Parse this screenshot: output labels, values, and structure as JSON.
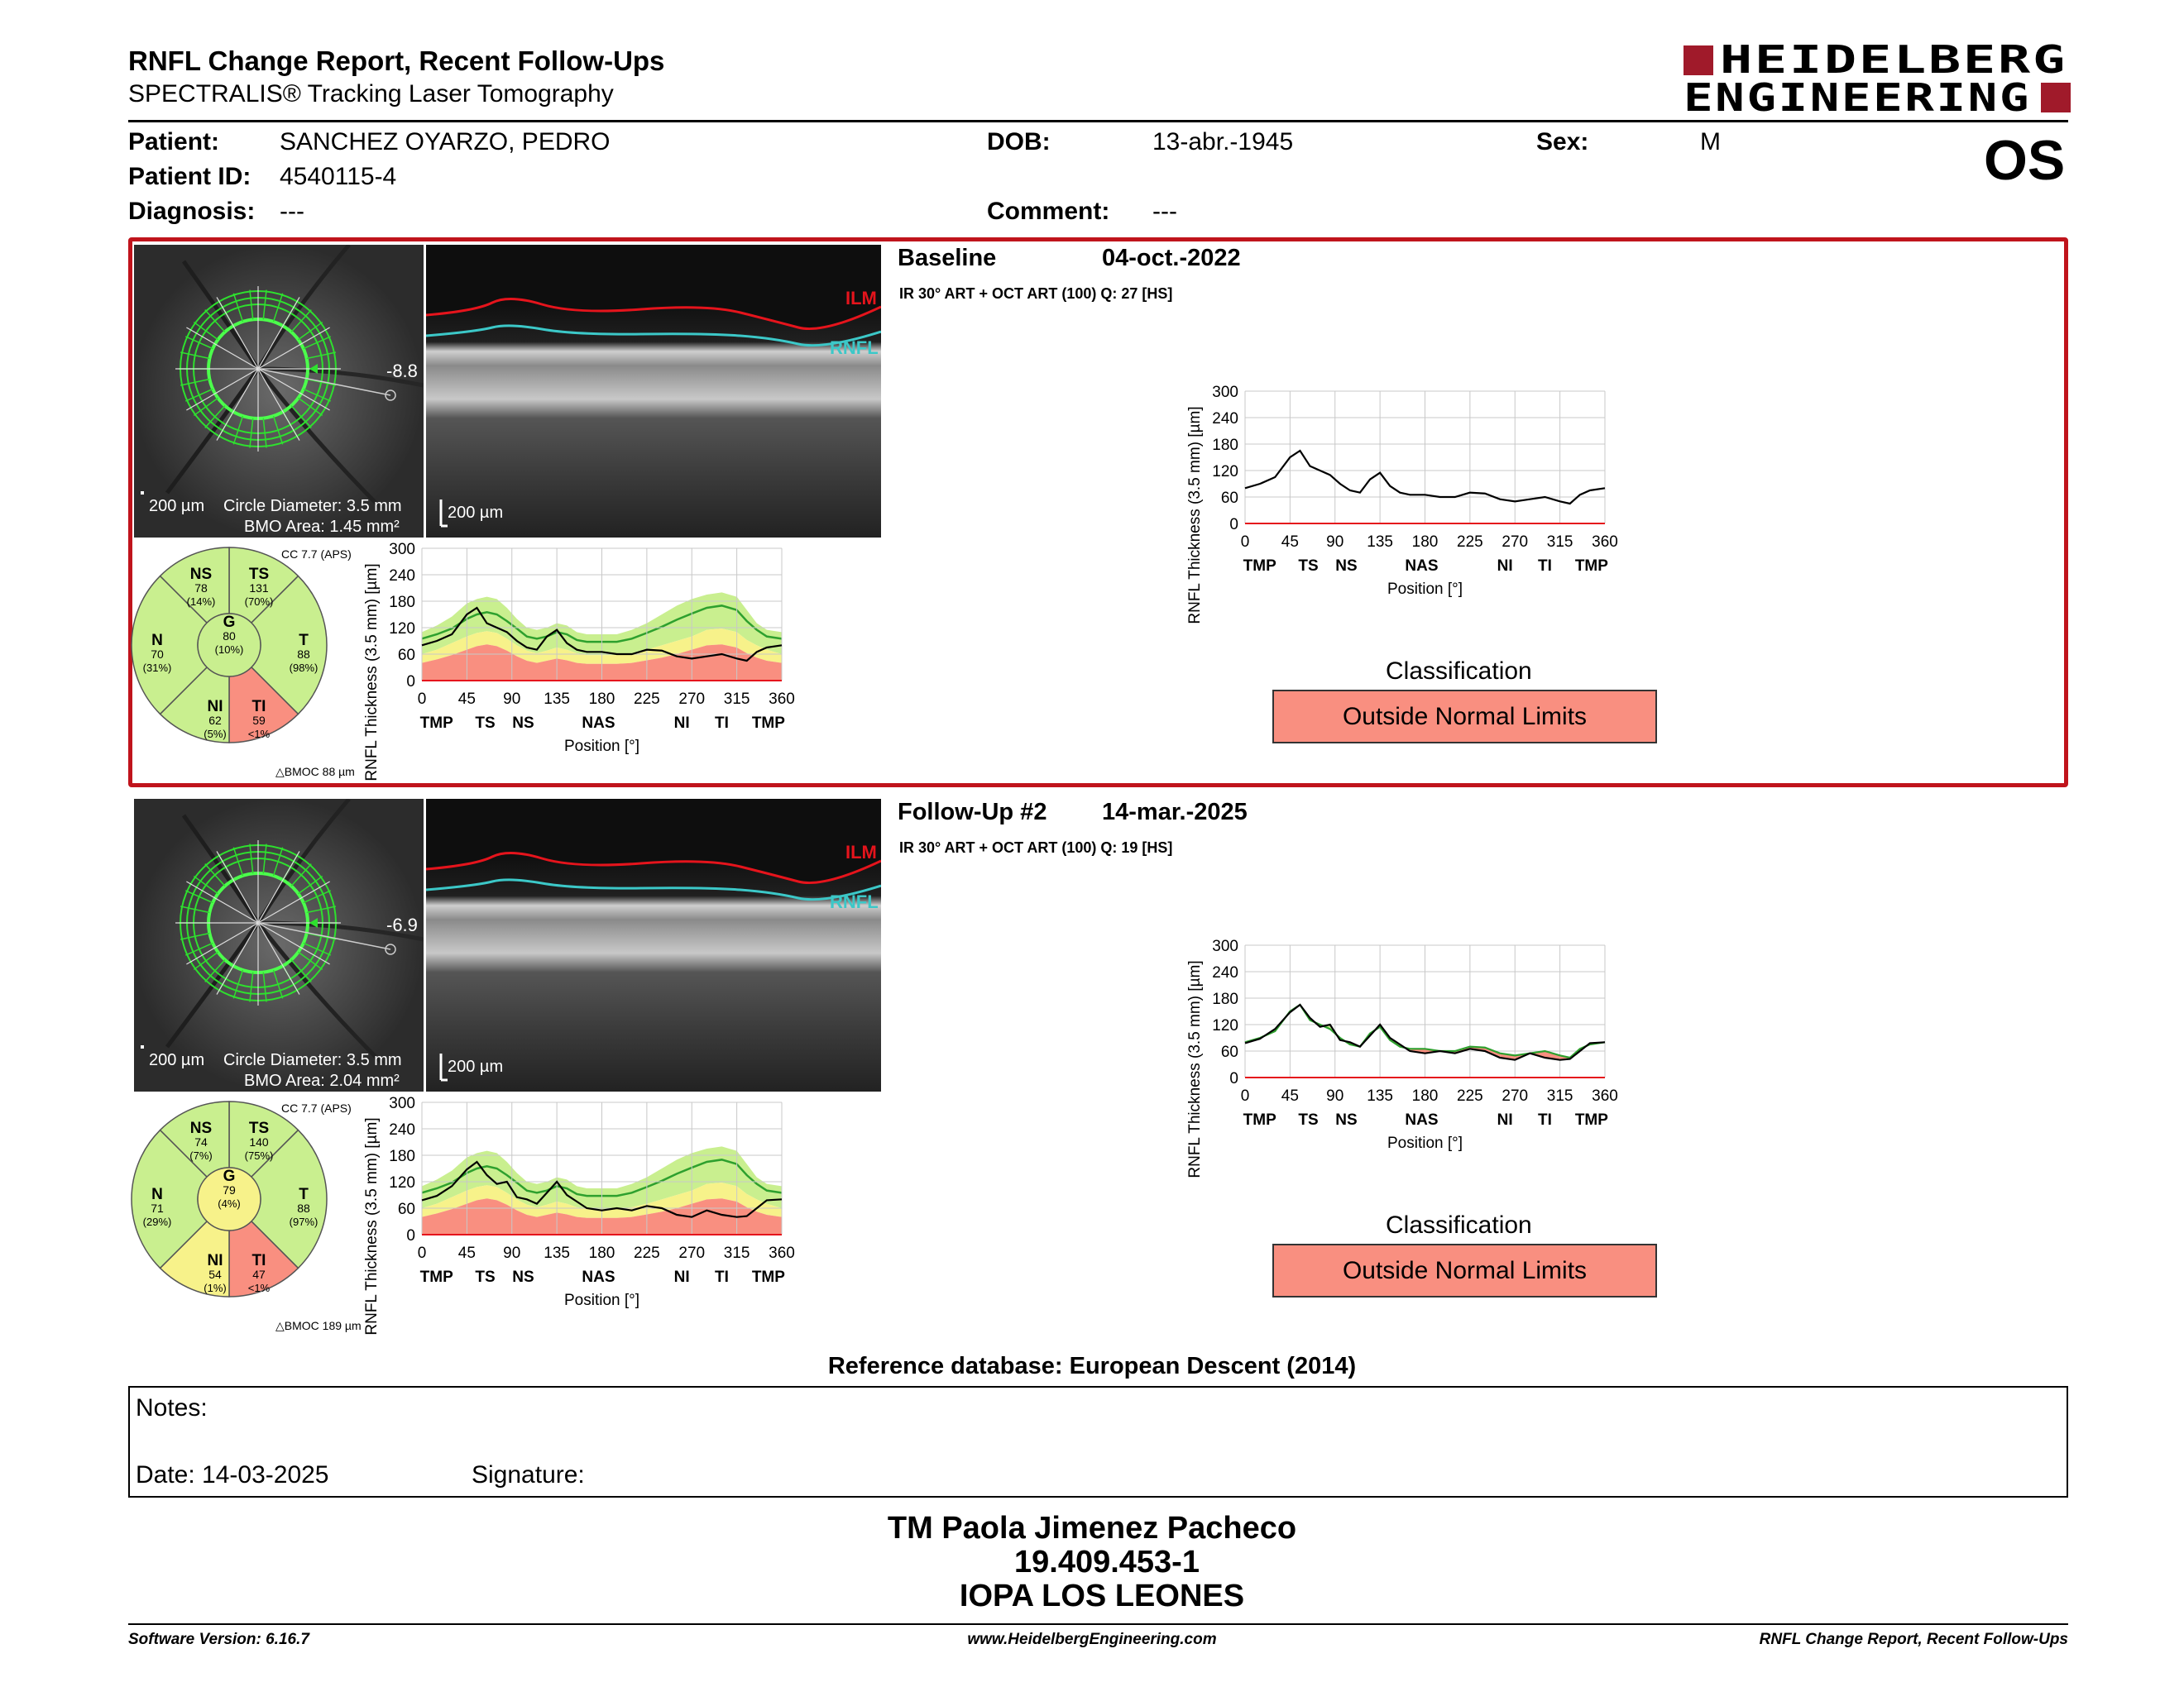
{
  "report": {
    "title": "RNFL Change Report, Recent Follow-Ups",
    "subtitle": "SPECTRALIS® Tracking Laser Tomography",
    "logo_line1": "HEIDELBERG",
    "logo_line2": "ENGINEERING",
    "eye": "OS"
  },
  "patient": {
    "patient_label": "Patient:",
    "name": "SANCHEZ OYARZO, PEDRO",
    "id_label": "Patient ID:",
    "id": "4540115-4",
    "diagnosis_label": "Diagnosis:",
    "diagnosis": "---",
    "dob_label": "DOB:",
    "dob": "13-abr.-1945",
    "comment_label": "Comment:",
    "comment": "---",
    "sex_label": "Sex:",
    "sex": "M"
  },
  "colors": {
    "outside_limits": "#f98f80",
    "borderline": "#f7f28a",
    "normal": "#c9ef8f",
    "ilm": "#e5141c",
    "rnfl": "#3cc8c8",
    "frame": "#c0141c"
  },
  "exams": [
    {
      "label": "Baseline",
      "date": "04-oct.-2022",
      "acq": "IR 30° ART + OCT ART (100) Q: 27 [HS]",
      "fundus_offset": "-8.8",
      "scale_label": "200 µm",
      "circle_diameter": "Circle Diameter: 3.5 mm",
      "bmo_area": "BMO Area: 1.45 mm²",
      "bscan_scale": "200 µm",
      "ilm_label": "ILM",
      "rnfl_label": "RNFL",
      "cc_label": "CC 7.7 (APS)",
      "bmoc": "△BMOC 88 µm",
      "sectors": {
        "NS": {
          "name": "NS",
          "value": "78",
          "pct": "(14%)",
          "color": "#c9ef8f"
        },
        "TS": {
          "name": "TS",
          "value": "131",
          "pct": "(70%)",
          "color": "#c9ef8f"
        },
        "N": {
          "name": "N",
          "value": "70",
          "pct": "(31%)",
          "color": "#c9ef8f"
        },
        "G": {
          "name": "G",
          "value": "80",
          "pct": "(10%)",
          "color": "#c9ef8f"
        },
        "T": {
          "name": "T",
          "value": "88",
          "pct": "(98%)",
          "color": "#c9ef8f"
        },
        "NI": {
          "name": "NI",
          "value": "62",
          "pct": "(5%)",
          "color": "#c9ef8f"
        },
        "TI": {
          "name": "TI",
          "value": "59",
          "pct": "<1%",
          "color": "#f98f80"
        }
      },
      "classification_label": "Classification",
      "classification": "Outside Normal Limits"
    },
    {
      "label": "Follow-Up #2",
      "date": "14-mar.-2025",
      "acq": "IR 30° ART + OCT ART (100) Q: 19 [HS]",
      "fundus_offset": "-6.9",
      "scale_label": "200 µm",
      "circle_diameter": "Circle Diameter: 3.5 mm",
      "bmo_area": "BMO Area: 2.04 mm²",
      "bscan_scale": "200 µm",
      "ilm_label": "ILM",
      "rnfl_label": "RNFL",
      "cc_label": "CC 7.7 (APS)",
      "bmoc": "△BMOC 189 µm",
      "sectors": {
        "NS": {
          "name": "NS",
          "value": "74",
          "pct": "(7%)",
          "color": "#c9ef8f"
        },
        "TS": {
          "name": "TS",
          "value": "140",
          "pct": "(75%)",
          "color": "#c9ef8f"
        },
        "N": {
          "name": "N",
          "value": "71",
          "pct": "(29%)",
          "color": "#c9ef8f"
        },
        "G": {
          "name": "G",
          "value": "79",
          "pct": "(4%)",
          "color": "#f7f28a"
        },
        "T": {
          "name": "T",
          "value": "88",
          "pct": "(97%)",
          "color": "#c9ef8f"
        },
        "NI": {
          "name": "NI",
          "value": "54",
          "pct": "(1%)",
          "color": "#f7f28a"
        },
        "TI": {
          "name": "TI",
          "value": "47",
          "pct": "<1%",
          "color": "#f98f80"
        }
      },
      "classification_label": "Classification",
      "classification": "Outside Normal Limits"
    }
  ],
  "chart_data": [
    {
      "type": "line",
      "name": "baseline-profile-vs-normative",
      "ylabel": "RNFL Thickness (3.5 mm) [µm]",
      "xlabel": "Position [°]",
      "ylim": [
        0,
        300
      ],
      "xlim": [
        0,
        360
      ],
      "x_ticks": [
        "0",
        "45",
        "90",
        "135",
        "180",
        "225",
        "270",
        "315",
        "360"
      ],
      "y_ticks": [
        "0",
        "60",
        "120",
        "180",
        "240",
        "300"
      ],
      "sector_labels": [
        "TMP",
        "TS",
        "NS",
        "NAS",
        "NI",
        "TI",
        "TMP"
      ],
      "x": [
        0,
        15,
        30,
        45,
        55,
        65,
        75,
        85,
        95,
        105,
        115,
        125,
        135,
        145,
        155,
        165,
        180,
        195,
        210,
        225,
        240,
        255,
        270,
        285,
        300,
        315,
        325,
        335,
        345,
        360
      ],
      "series": [
        {
          "name": "Baseline",
          "values": [
            80,
            90,
            105,
            150,
            165,
            130,
            120,
            110,
            90,
            75,
            70,
            100,
            115,
            85,
            70,
            65,
            65,
            60,
            60,
            70,
            68,
            55,
            50,
            55,
            60,
            50,
            45,
            65,
            75,
            80
          ]
        }
      ],
      "normal_band": {
        "lower": [
          75,
          85,
          100,
          115,
          125,
          130,
          125,
          110,
          95,
          80,
          75,
          80,
          90,
          85,
          75,
          70,
          70,
          70,
          75,
          85,
          95,
          105,
          120,
          135,
          140,
          130,
          110,
          95,
          85,
          75
        ],
        "upper": [
          110,
          125,
          145,
          175,
          185,
          190,
          185,
          165,
          140,
          120,
          115,
          120,
          130,
          125,
          110,
          105,
          105,
          105,
          115,
          130,
          150,
          170,
          185,
          195,
          200,
          190,
          160,
          130,
          115,
          110
        ]
      },
      "borderline_upper": [
        60,
        70,
        85,
        100,
        108,
        112,
        108,
        95,
        80,
        68,
        62,
        68,
        75,
        70,
        62,
        58,
        58,
        58,
        62,
        70,
        80,
        90,
        100,
        115,
        118,
        110,
        92,
        80,
        70,
        60
      ],
      "outside_upper": [
        40,
        48,
        58,
        70,
        78,
        82,
        78,
        68,
        55,
        45,
        40,
        45,
        50,
        46,
        40,
        38,
        38,
        38,
        40,
        46,
        52,
        60,
        70,
        80,
        82,
        75,
        62,
        52,
        45,
        40
      ],
      "mean": [
        95,
        105,
        118,
        140,
        150,
        155,
        150,
        135,
        118,
        100,
        95,
        100,
        110,
        105,
        92,
        88,
        88,
        88,
        95,
        108,
        122,
        138,
        152,
        165,
        170,
        160,
        135,
        115,
        100,
        95
      ]
    },
    {
      "type": "line",
      "name": "baseline-profile",
      "ylabel": "RNFL Thickness (3.5 mm) [µm]",
      "xlabel": "Position [°]",
      "ylim": [
        0,
        300
      ],
      "xlim": [
        0,
        360
      ],
      "x_ticks": [
        "0",
        "45",
        "90",
        "135",
        "180",
        "225",
        "270",
        "315",
        "360"
      ],
      "y_ticks": [
        "0",
        "60",
        "120",
        "180",
        "240",
        "300"
      ],
      "sector_labels": [
        "TMP",
        "TS",
        "NS",
        "NAS",
        "NI",
        "TI",
        "TMP"
      ],
      "x": [
        0,
        15,
        30,
        45,
        55,
        65,
        75,
        85,
        95,
        105,
        115,
        125,
        135,
        145,
        155,
        165,
        180,
        195,
        210,
        225,
        240,
        255,
        270,
        285,
        300,
        315,
        325,
        335,
        345,
        360
      ],
      "series": [
        {
          "name": "Baseline",
          "values": [
            80,
            90,
            105,
            150,
            165,
            130,
            120,
            110,
            90,
            75,
            70,
            100,
            115,
            85,
            70,
            65,
            65,
            60,
            60,
            70,
            68,
            55,
            50,
            55,
            60,
            50,
            45,
            65,
            75,
            80
          ]
        }
      ]
    },
    {
      "type": "line",
      "name": "followup-profile-vs-normative",
      "ylabel": "RNFL Thickness (3.5 mm) [µm]",
      "xlabel": "Position [°]",
      "ylim": [
        0,
        300
      ],
      "xlim": [
        0,
        360
      ],
      "x_ticks": [
        "0",
        "45",
        "90",
        "135",
        "180",
        "225",
        "270",
        "315",
        "360"
      ],
      "y_ticks": [
        "0",
        "60",
        "120",
        "180",
        "240",
        "300"
      ],
      "sector_labels": [
        "TMP",
        "TS",
        "NS",
        "NAS",
        "NI",
        "TI",
        "TMP"
      ],
      "x": [
        0,
        15,
        30,
        45,
        55,
        65,
        75,
        85,
        95,
        105,
        115,
        125,
        135,
        145,
        155,
        165,
        180,
        195,
        210,
        225,
        240,
        255,
        270,
        285,
        300,
        315,
        325,
        335,
        345,
        360
      ],
      "series": [
        {
          "name": "Follow-Up #2",
          "values": [
            78,
            88,
            110,
            148,
            165,
            135,
            115,
            120,
            85,
            80,
            70,
            95,
            120,
            90,
            75,
            60,
            55,
            60,
            55,
            65,
            60,
            45,
            40,
            55,
            45,
            40,
            42,
            60,
            78,
            80
          ]
        }
      ],
      "normal_band": {
        "lower": [
          75,
          85,
          100,
          115,
          125,
          130,
          125,
          110,
          95,
          80,
          75,
          80,
          90,
          85,
          75,
          70,
          70,
          70,
          75,
          85,
          95,
          105,
          120,
          135,
          140,
          130,
          110,
          95,
          85,
          75
        ],
        "upper": [
          110,
          125,
          145,
          175,
          185,
          190,
          185,
          165,
          140,
          120,
          115,
          120,
          130,
          125,
          110,
          105,
          105,
          105,
          115,
          130,
          150,
          170,
          185,
          195,
          200,
          190,
          160,
          130,
          115,
          110
        ]
      },
      "borderline_upper": [
        60,
        70,
        85,
        100,
        108,
        112,
        108,
        95,
        80,
        68,
        62,
        68,
        75,
        70,
        62,
        58,
        58,
        58,
        62,
        70,
        80,
        90,
        100,
        115,
        118,
        110,
        92,
        80,
        70,
        60
      ],
      "outside_upper": [
        40,
        48,
        58,
        70,
        78,
        82,
        78,
        68,
        55,
        45,
        40,
        45,
        50,
        46,
        40,
        38,
        38,
        38,
        40,
        46,
        52,
        60,
        70,
        80,
        82,
        75,
        62,
        52,
        45,
        40
      ],
      "mean": [
        95,
        105,
        118,
        140,
        150,
        155,
        150,
        135,
        118,
        100,
        95,
        100,
        110,
        105,
        92,
        88,
        88,
        88,
        95,
        108,
        122,
        138,
        152,
        165,
        170,
        160,
        135,
        115,
        100,
        95
      ]
    },
    {
      "type": "line",
      "name": "followup-change-profile",
      "ylabel": "RNFL Thickness (3.5 mm) [µm]",
      "xlabel": "Position [°]",
      "ylim": [
        0,
        300
      ],
      "xlim": [
        0,
        360
      ],
      "x_ticks": [
        "0",
        "45",
        "90",
        "135",
        "180",
        "225",
        "270",
        "315",
        "360"
      ],
      "y_ticks": [
        "0",
        "60",
        "120",
        "180",
        "240",
        "300"
      ],
      "sector_labels": [
        "TMP",
        "TS",
        "NS",
        "NAS",
        "NI",
        "TI",
        "TMP"
      ],
      "x": [
        0,
        15,
        30,
        45,
        55,
        65,
        75,
        85,
        95,
        105,
        115,
        125,
        135,
        145,
        155,
        165,
        180,
        195,
        210,
        225,
        240,
        255,
        270,
        285,
        300,
        315,
        325,
        335,
        345,
        360
      ],
      "series": [
        {
          "name": "Baseline",
          "values": [
            80,
            90,
            105,
            150,
            165,
            130,
            120,
            110,
            90,
            75,
            70,
            100,
            115,
            85,
            70,
            65,
            65,
            60,
            60,
            70,
            68,
            55,
            50,
            55,
            60,
            50,
            45,
            65,
            75,
            80
          ]
        },
        {
          "name": "Follow-Up #2",
          "values": [
            78,
            88,
            110,
            148,
            165,
            135,
            115,
            120,
            85,
            80,
            70,
            95,
            120,
            90,
            75,
            60,
            55,
            60,
            55,
            65,
            60,
            45,
            40,
            55,
            45,
            40,
            42,
            60,
            78,
            80
          ]
        }
      ]
    }
  ],
  "reference_db": "Reference database: European Descent (2014)",
  "notes": {
    "notes_label": "Notes:",
    "date_label": "Date: 14-03-2025",
    "signature_label": "Signature:"
  },
  "signatory": {
    "name": "TM Paola Jimenez Pacheco",
    "rut": "19.409.453-1",
    "institution": "IOPA LOS LEONES"
  },
  "footer": {
    "version": "Software Version: 6.16.7",
    "url": "www.HeidelbergEngineering.com",
    "report_name": "RNFL Change Report, Recent Follow-Ups"
  }
}
